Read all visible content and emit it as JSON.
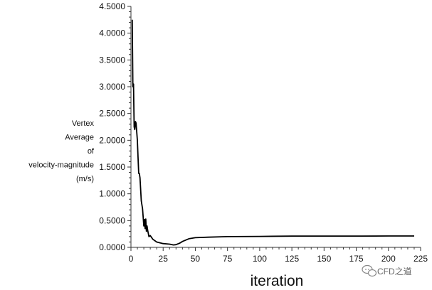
{
  "chart_data": {
    "type": "line",
    "title": "",
    "xlabel": "iteration",
    "ylabel_lines": [
      "Vertex",
      "Average",
      "of",
      "velocity-magnitude",
      "(m/s)"
    ],
    "xlim": [
      0,
      225
    ],
    "ylim": [
      0,
      4.5
    ],
    "x_ticks": [
      0,
      25,
      50,
      75,
      100,
      125,
      150,
      175,
      200,
      225
    ],
    "y_ticks": [
      0,
      0.5,
      1,
      1.5,
      2,
      2.5,
      3,
      3.5,
      4,
      4.5
    ],
    "y_tick_labels": [
      "0.0000",
      "0.5000",
      "1.0000",
      "1.5000",
      "2.0000",
      "2.5000",
      "3.0000",
      "3.5000",
      "4.0000",
      "4.5000"
    ],
    "grid": false,
    "series": [
      {
        "color": "#000000",
        "x": [
          1,
          1.5,
          2,
          2.5,
          3,
          3.5,
          4,
          5,
          5.5,
          6,
          6.5,
          7,
          8,
          9,
          10,
          10.5,
          11,
          11.5,
          12,
          12.5,
          13,
          14,
          15,
          17,
          20,
          25,
          30,
          33,
          35,
          38,
          40,
          45,
          50,
          60,
          75,
          100,
          125,
          150,
          175,
          200,
          220
        ],
        "y": [
          4.25,
          3.0,
          3.05,
          2.25,
          2.2,
          2.35,
          2.32,
          2.0,
          1.7,
          1.38,
          1.38,
          1.3,
          0.87,
          0.72,
          0.4,
          0.52,
          0.35,
          0.53,
          0.3,
          0.4,
          0.32,
          0.2,
          0.22,
          0.15,
          0.1,
          0.07,
          0.06,
          0.045,
          0.05,
          0.08,
          0.11,
          0.16,
          0.18,
          0.19,
          0.2,
          0.205,
          0.21,
          0.21,
          0.21,
          0.212,
          0.212
        ]
      }
    ]
  },
  "watermark": {
    "text": "CFD之道",
    "icon": "chat-bubble-icon"
  }
}
